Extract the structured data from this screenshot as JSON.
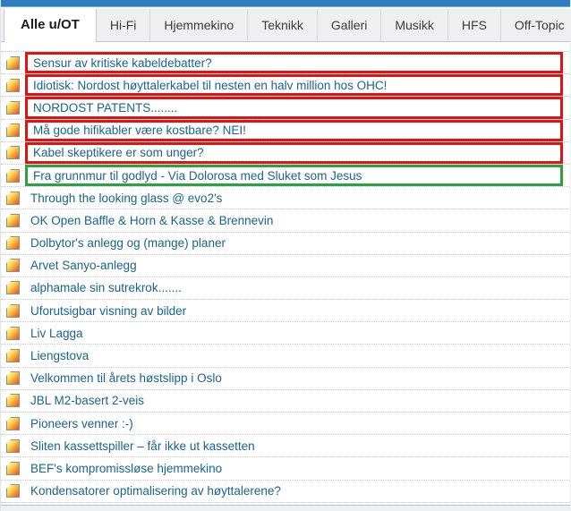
{
  "colors": {
    "top_bar": "#2f7dc1",
    "annotation_red": "#e01212",
    "annotation_green": "#2fa042",
    "thread_link": "#17648f"
  },
  "tabs": {
    "items": [
      {
        "label": "Alle u/OT",
        "active": true
      },
      {
        "label": "Hi-Fi",
        "active": false
      },
      {
        "label": "Hjemmekino",
        "active": false
      },
      {
        "label": "Teknikk",
        "active": false
      },
      {
        "label": "Galleri",
        "active": false
      },
      {
        "label": "Musikk",
        "active": false
      },
      {
        "label": "HFS",
        "active": false
      },
      {
        "label": "Off-Topic",
        "active": false
      }
    ]
  },
  "threads": {
    "items": [
      {
        "title": "Sensur av kritiske kabeldebatter?",
        "highlight": "red"
      },
      {
        "title": "Idiotisk: Nordost høyttalerkabel til nesten en halv million hos OHC!",
        "highlight": "red"
      },
      {
        "title": "NORDOST PATENTS........",
        "highlight": "red"
      },
      {
        "title": "Må gode hifikabler være kostbare? NEI!",
        "highlight": "red"
      },
      {
        "title": "Kabel skeptikere er som unger?",
        "highlight": "red"
      },
      {
        "title": "Fra grunnmur til godlyd - Via Dolorosa med Sluket som Jesus",
        "highlight": "green"
      },
      {
        "title": "Through the looking glass @ evo2's",
        "highlight": null
      },
      {
        "title": "OK Open Baffle & Horn & Kasse & Brennevin",
        "highlight": null
      },
      {
        "title": "Dolbytor's anlegg og (mange) planer",
        "highlight": null
      },
      {
        "title": "Arvet Sanyo-anlegg",
        "highlight": null
      },
      {
        "title": "alphamale sin sutrekrok.......",
        "highlight": null
      },
      {
        "title": "Uforutsigbar visning av bilder",
        "highlight": null
      },
      {
        "title": "Liv Lagga",
        "highlight": null
      },
      {
        "title": "Liengstova",
        "highlight": null
      },
      {
        "title": "Velkommen til årets høstslipp i Oslo",
        "highlight": null
      },
      {
        "title": "JBL M2-basert 2-veis",
        "highlight": null
      },
      {
        "title": "Pioneers venner :-)",
        "highlight": null
      },
      {
        "title": "Sliten kassettspiller – får ikke ut kassetten",
        "highlight": null
      },
      {
        "title": "BEF's kompromissløse hjemmekino",
        "highlight": null
      },
      {
        "title": "Kondensatorer optimalisering av høyttalerene?",
        "highlight": null
      }
    ]
  }
}
